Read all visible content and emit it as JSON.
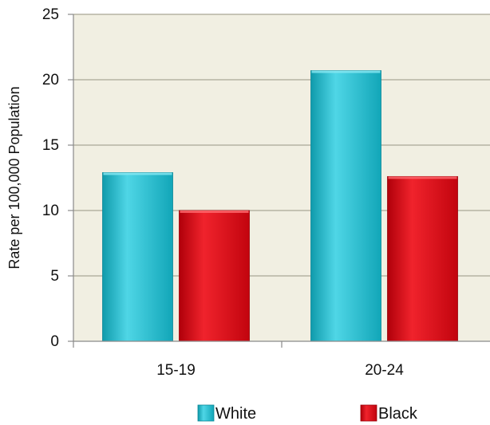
{
  "chart_data": {
    "type": "bar",
    "title": "",
    "xlabel": "",
    "ylabel": "Rate per 100,000 Population",
    "categories": [
      "15-19",
      "20-24"
    ],
    "series": [
      {
        "name": "White",
        "values": [
          12.9,
          20.7
        ],
        "color": "#22c0d2"
      },
      {
        "name": "Black",
        "values": [
          10.0,
          12.6
        ],
        "color": "#d80c16"
      }
    ],
    "ylim": [
      0,
      25
    ],
    "yticks": [
      "0",
      "5",
      "10",
      "15",
      "20",
      "25"
    ],
    "grid": true,
    "legend_position": "bottom",
    "plot_background": "#f1efe2",
    "gridline_color": "#b5b3a3"
  }
}
